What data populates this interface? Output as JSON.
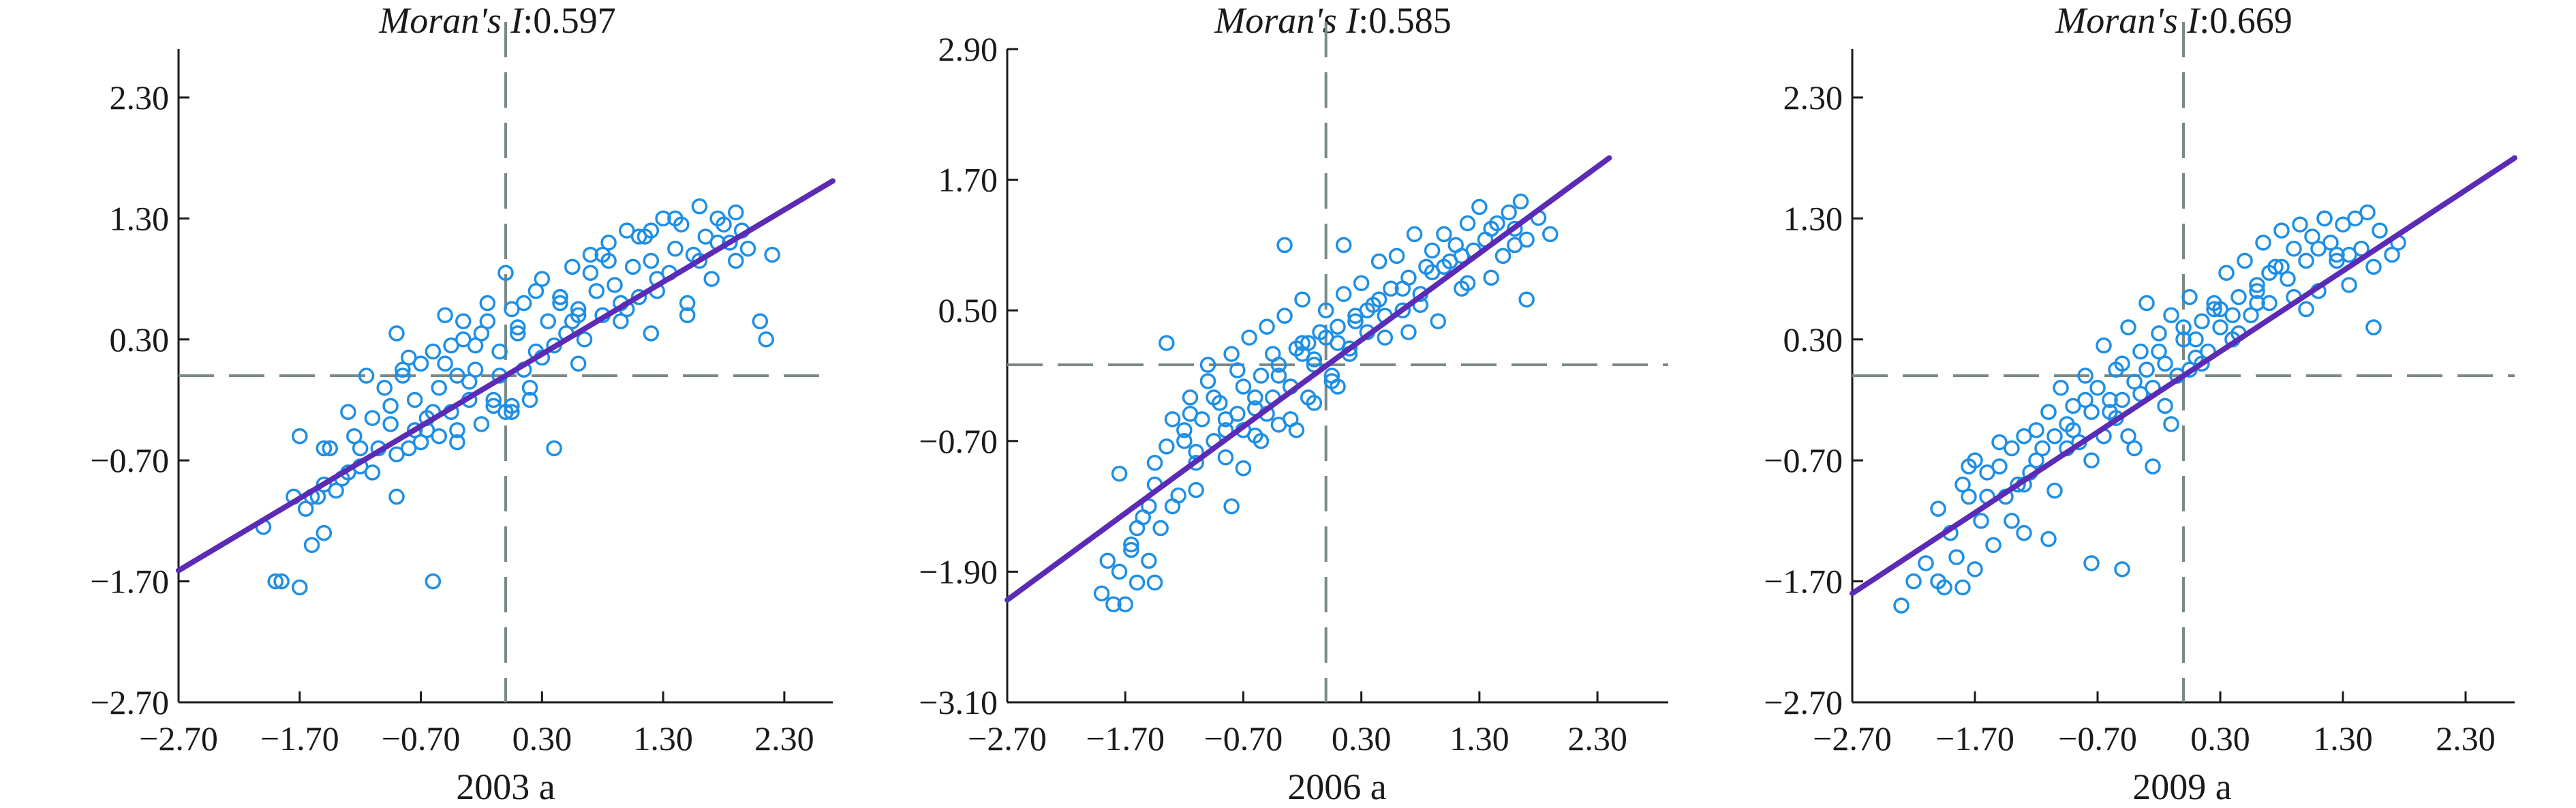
{
  "colors": {
    "point": "#1e8fe6",
    "fit_line": "#5b2bb5",
    "reference_line": "#7a8a86",
    "axis": "#1a1a1a"
  },
  "chart_data": [
    {
      "type": "scatter",
      "title_italic": "Moran's I",
      "title_value": ":0.597",
      "xlabel": "2003 a",
      "ylabel": "",
      "xlim": [
        -2.7,
        2.7
      ],
      "ylim": [
        -2.7,
        2.7
      ],
      "xticks": [
        "−2.70",
        "−1.70",
        "−0.70",
        "0.30",
        "1.30",
        "2.30"
      ],
      "yticks": [
        "−2.70",
        "−1.70",
        "−0.70",
        "0.30",
        "1.30",
        "2.30"
      ],
      "xtick_values": [
        -2.7,
        -1.7,
        -0.7,
        0.3,
        1.3,
        2.3
      ],
      "ytick_values": [
        -2.7,
        -1.7,
        -0.7,
        0.3,
        1.3,
        2.3
      ],
      "reference_x": 0.0,
      "reference_y": 0.0,
      "fit_line": {
        "x": [
          -2.7,
          2.7
        ],
        "y": [
          -1.61,
          1.61
        ]
      },
      "grid": false,
      "points_x": [
        -2.0,
        -1.9,
        -1.85,
        -1.75,
        -1.7,
        -1.65,
        -1.6,
        -1.55,
        -1.5,
        -1.45,
        -1.4,
        -1.3,
        -1.25,
        -1.2,
        -1.15,
        -1.1,
        -1.05,
        -1.0,
        -0.95,
        -0.9,
        -0.85,
        -0.8,
        -0.75,
        -0.7,
        -0.65,
        -0.6,
        -0.55,
        -0.5,
        -0.45,
        -0.4,
        -0.35,
        -0.3,
        -0.25,
        -0.2,
        -0.15,
        -0.1,
        -0.05,
        0.0,
        0.05,
        0.1,
        0.15,
        0.2,
        0.25,
        0.3,
        0.35,
        0.4,
        0.45,
        0.5,
        0.55,
        0.6,
        0.65,
        0.7,
        0.75,
        0.8,
        0.85,
        0.9,
        0.95,
        1.0,
        1.05,
        1.1,
        1.15,
        1.2,
        1.25,
        1.3,
        1.35,
        1.4,
        1.45,
        1.5,
        1.55,
        1.6,
        1.65,
        1.7,
        1.75,
        1.8,
        1.85,
        1.9,
        1.95,
        2.0,
        2.1,
        2.15,
        -1.7,
        -1.5,
        -1.3,
        -1.1,
        -0.9,
        -0.85,
        -0.75,
        -0.6,
        -0.5,
        -0.4,
        -0.35,
        -0.25,
        -0.15,
        -0.05,
        0.05,
        0.15,
        0.25,
        0.4,
        0.55,
        0.7,
        0.8,
        0.95,
        1.1,
        1.25,
        1.4,
        1.6,
        1.75,
        1.9,
        -1.6,
        -1.2,
        -0.95,
        -0.8,
        -0.65,
        -0.45,
        -0.3,
        -0.2,
        0.0,
        0.1,
        0.3,
        0.45,
        0.6,
        0.85,
        1.0,
        1.2,
        1.5,
        -0.9,
        -0.7,
        -0.55,
        -0.4,
        -0.1,
        0.05,
        0.2,
        -1.5,
        -1.35,
        -0.6,
        0.45,
        0.6,
        1.2,
        2.2
      ],
      "points_y": [
        -1.25,
        -1.7,
        -1.7,
        -1.0,
        -1.75,
        -1.1,
        -1.4,
        -1.0,
        -1.3,
        -0.6,
        -0.95,
        -0.8,
        -0.5,
        -0.75,
        0.0,
        -0.35,
        -0.6,
        -0.1,
        -0.4,
        0.35,
        0.0,
        -0.6,
        -0.2,
        0.1,
        -0.45,
        0.2,
        -0.1,
        0.5,
        -0.3,
        0.0,
        0.45,
        -0.2,
        0.25,
        -0.4,
        0.6,
        -0.2,
        0.2,
        0.85,
        -0.25,
        0.35,
        0.6,
        -0.1,
        0.2,
        0.8,
        0.45,
        -0.6,
        0.6,
        0.35,
        0.9,
        0.55,
        0.3,
        1.0,
        0.7,
        0.5,
        1.1,
        0.75,
        0.45,
        1.2,
        0.9,
        0.65,
        1.15,
        0.95,
        0.8,
        1.3,
        0.85,
        1.05,
        1.25,
        0.5,
        1.0,
        1.4,
        1.15,
        0.8,
        1.3,
        1.25,
        1.1,
        0.95,
        1.2,
        1.05,
        0.45,
        0.3,
        -0.5,
        -0.9,
        -0.3,
        -0.8,
        -1.0,
        0.05,
        -0.45,
        -0.3,
        0.1,
        -0.55,
        0.3,
        0.05,
        0.45,
        0.0,
        0.55,
        0.05,
        0.7,
        0.25,
        0.45,
        0.85,
        1.0,
        0.6,
        1.15,
        0.7,
        1.3,
        0.95,
        1.1,
        1.35,
        -1.0,
        -0.6,
        -0.25,
        0.15,
        -0.35,
        0.25,
        -0.05,
        0.35,
        -0.3,
        0.4,
        0.15,
        0.65,
        0.1,
        0.95,
        0.55,
        1.2,
        0.6,
        -0.65,
        -0.55,
        -0.5,
        -0.45,
        -0.25,
        -0.3,
        -0.2,
        -0.6,
        -0.85,
        -1.7,
        0.65,
        0.5,
        0.35,
        1.0
      ]
    },
    {
      "type": "scatter",
      "title_italic": "Moran's I",
      "title_value": ":0.585",
      "xlabel": "2006 a",
      "ylabel": "",
      "xlim": [
        -2.7,
        2.9
      ],
      "ylim": [
        -3.1,
        2.9
      ],
      "xticks": [
        "−2.70",
        "−1.70",
        "−0.70",
        "0.30",
        "1.30",
        "2.30"
      ],
      "yticks": [
        "−3.10",
        "−1.90",
        "−0.70",
        "0.50",
        "1.70",
        "2.90"
      ],
      "xtick_values": [
        -2.7,
        -1.7,
        -0.7,
        0.3,
        1.3,
        2.3
      ],
      "ytick_values": [
        -3.1,
        -1.9,
        -0.7,
        0.5,
        1.7,
        2.9
      ],
      "reference_x": 0.0,
      "reference_y": 0.0,
      "fit_line": {
        "x": [
          -2.7,
          2.4
        ],
        "y": [
          -2.16,
          1.9
        ]
      },
      "grid": false,
      "points_x": [
        -1.9,
        -1.85,
        -1.8,
        -1.75,
        -1.7,
        -1.65,
        -1.6,
        -1.55,
        -1.5,
        -1.45,
        -1.4,
        -1.35,
        -1.3,
        -1.25,
        -1.2,
        -1.15,
        -1.1,
        -1.05,
        -1.0,
        -0.95,
        -0.9,
        -0.85,
        -0.8,
        -0.75,
        -0.7,
        -0.65,
        -0.6,
        -0.55,
        -0.5,
        -0.45,
        -0.4,
        -0.35,
        -0.3,
        -0.25,
        -0.2,
        -0.15,
        -0.1,
        -0.05,
        0.0,
        0.05,
        0.1,
        0.15,
        0.2,
        0.25,
        0.3,
        0.35,
        0.4,
        0.45,
        0.5,
        0.55,
        0.6,
        0.65,
        0.7,
        0.75,
        0.8,
        0.85,
        0.9,
        0.95,
        1.0,
        1.05,
        1.1,
        1.15,
        1.2,
        1.25,
        1.3,
        1.35,
        1.4,
        1.45,
        1.5,
        1.55,
        1.6,
        1.65,
        1.7,
        1.8,
        1.9,
        -1.75,
        -1.6,
        -1.45,
        -1.3,
        -1.2,
        -1.1,
        -0.95,
        -0.85,
        -0.7,
        -0.6,
        -0.5,
        -0.4,
        -0.3,
        -0.2,
        -0.1,
        0.0,
        0.1,
        0.2,
        0.35,
        0.5,
        0.65,
        0.8,
        1.0,
        1.2,
        1.4,
        1.6,
        -1.65,
        -1.5,
        -1.35,
        -1.15,
        -1.0,
        -0.85,
        -0.75,
        -0.6,
        -0.45,
        -0.3,
        -0.15,
        0.05,
        0.25,
        0.45,
        0.7,
        0.9,
        1.15,
        -0.7,
        -0.55,
        -0.4,
        -0.25,
        -0.1,
        0.1,
        -1.1,
        -0.8,
        -1.45,
        -0.35,
        0.15,
        -0.2,
        1.7
      ],
      "points_y": [
        -2.1,
        -1.8,
        -2.2,
        -1.9,
        -2.2,
        -1.7,
        -2.0,
        -1.4,
        -1.8,
        -1.1,
        -1.5,
        0.2,
        -0.5,
        -1.2,
        -0.7,
        -0.3,
        -0.9,
        -0.5,
        0.0,
        -0.7,
        -0.35,
        -0.6,
        0.1,
        -0.45,
        -0.2,
        0.25,
        -0.4,
        -0.1,
        0.35,
        -0.3,
        0.0,
        0.45,
        -0.2,
        0.15,
        0.6,
        -0.3,
        0.05,
        0.3,
        0.5,
        -0.1,
        0.2,
        0.65,
        0.1,
        0.4,
        0.75,
        0.3,
        0.55,
        0.95,
        0.45,
        0.7,
        1.0,
        0.5,
        0.8,
        1.2,
        0.65,
        0.9,
        1.05,
        0.4,
        1.2,
        0.95,
        1.1,
        0.7,
        1.3,
        1.05,
        1.45,
        1.15,
        0.8,
        1.3,
        1.0,
        1.4,
        1.25,
        1.5,
        1.15,
        1.35,
        1.2,
        -1.0,
        -1.5,
        -0.9,
        -1.3,
        -0.6,
        -0.8,
        -0.3,
        -0.5,
        -0.6,
        -0.3,
        -0.45,
        -0.1,
        -0.2,
        0.2,
        0.0,
        0.25,
        0.35,
        0.15,
        0.5,
        0.25,
        0.7,
        0.55,
        0.9,
        0.75,
        1.25,
        1.1,
        -1.65,
        -1.3,
        -0.75,
        -0.45,
        -0.15,
        -0.85,
        -0.05,
        -0.65,
        0.1,
        -0.5,
        0.2,
        -0.15,
        0.45,
        0.6,
        0.3,
        0.85,
        1.0,
        -0.95,
        -0.7,
        -0.55,
        -0.6,
        -0.35,
        -0.2,
        -1.15,
        -1.3,
        -2.0,
        1.1,
        1.1,
        0.1,
        0.6
      ]
    },
    {
      "type": "scatter",
      "title_italic": "Moran's I",
      "title_value": ":0.669",
      "xlabel": "2009 a",
      "ylabel": "",
      "xlim": [
        -2.7,
        2.7
      ],
      "ylim": [
        -2.7,
        2.7
      ],
      "xticks": [
        "−2.70",
        "−1.70",
        "−0.70",
        "0.30",
        "1.30",
        "2.30"
      ],
      "yticks": [
        "−2.70",
        "−1.70",
        "−0.70",
        "0.30",
        "1.30",
        "2.30"
      ],
      "xtick_values": [
        -2.7,
        -1.7,
        -0.7,
        0.3,
        1.3,
        2.3
      ],
      "ytick_values": [
        -2.7,
        -1.7,
        -0.7,
        0.3,
        1.3,
        2.3
      ],
      "reference_x": 0.0,
      "reference_y": 0.0,
      "fit_line": {
        "x": [
          -2.7,
          2.7
        ],
        "y": [
          -1.8,
          1.8
        ]
      },
      "grid": false,
      "points_x": [
        -2.3,
        -2.2,
        -2.1,
        -2.0,
        -1.95,
        -1.9,
        -1.85,
        -1.8,
        -1.75,
        -1.7,
        -1.65,
        -1.6,
        -1.55,
        -1.5,
        -1.45,
        -1.4,
        -1.35,
        -1.3,
        -1.25,
        -1.2,
        -1.15,
        -1.1,
        -1.05,
        -1.0,
        -0.95,
        -0.9,
        -0.85,
        -0.8,
        -0.75,
        -0.7,
        -0.65,
        -0.6,
        -0.55,
        -0.5,
        -0.45,
        -0.4,
        -0.35,
        -0.3,
        -0.25,
        -0.2,
        -0.15,
        -0.1,
        -0.05,
        0.0,
        0.05,
        0.1,
        0.15,
        0.2,
        0.25,
        0.3,
        0.35,
        0.4,
        0.45,
        0.5,
        0.55,
        0.6,
        0.65,
        0.7,
        0.75,
        0.8,
        0.85,
        0.9,
        0.95,
        1.0,
        1.05,
        1.1,
        1.15,
        1.2,
        1.25,
        1.3,
        1.35,
        1.4,
        1.45,
        1.5,
        1.55,
        1.6,
        1.7,
        1.75,
        -2.0,
        -1.8,
        -1.6,
        -1.4,
        -1.2,
        -1.05,
        -0.9,
        -0.75,
        -0.6,
        -0.45,
        -0.3,
        -0.15,
        0.0,
        0.15,
        0.3,
        0.45,
        0.6,
        0.8,
        1.0,
        1.15,
        1.35,
        1.55,
        -1.7,
        -1.5,
        -1.3,
        -1.1,
        -0.95,
        -0.8,
        -0.65,
        -0.5,
        -0.35,
        -0.2,
        -0.05,
        0.1,
        0.25,
        0.4,
        0.7,
        0.9,
        1.1,
        1.25,
        -0.55,
        -0.4,
        -0.25,
        -0.1,
        0.05,
        -1.3,
        -1.1,
        -0.75,
        -0.5,
        -1.75,
        0.4,
        0.6
      ],
      "points_y": [
        -1.9,
        -1.7,
        -1.55,
        -1.7,
        -1.75,
        -1.3,
        -1.5,
        -1.75,
        -1.0,
        -1.6,
        -1.2,
        -0.8,
        -1.4,
        -0.75,
        -1.0,
        -0.6,
        -0.9,
        -0.5,
        -0.8,
        -0.45,
        -0.6,
        -0.3,
        -0.5,
        -0.1,
        -0.4,
        -0.25,
        -0.55,
        0.0,
        -0.3,
        -0.1,
        0.25,
        -0.3,
        0.05,
        -0.2,
        0.4,
        -0.05,
        0.2,
        0.6,
        -0.1,
        0.35,
        0.1,
        0.5,
        0.0,
        0.3,
        0.65,
        0.15,
        0.45,
        0.2,
        0.55,
        0.4,
        0.85,
        0.3,
        0.65,
        0.95,
        0.5,
        0.75,
        1.1,
        0.6,
        0.9,
        1.2,
        0.8,
        1.05,
        1.25,
        0.95,
        1.15,
        0.7,
        1.3,
        1.1,
        1.0,
        1.25,
        0.75,
        1.3,
        1.05,
        1.35,
        0.9,
        1.2,
        1.0,
        1.1,
        -1.1,
        -0.9,
        -1.0,
        -1.2,
        -0.7,
        -0.95,
        -0.45,
        -0.7,
        -0.2,
        -0.5,
        0.05,
        -0.25,
        0.4,
        0.1,
        0.55,
        0.35,
        0.7,
        0.9,
        0.55,
        1.3,
        1.0,
        0.4,
        -0.7,
        -0.55,
        -0.9,
        -0.3,
        -0.6,
        -0.2,
        -0.5,
        0.1,
        -0.15,
        0.2,
        0.0,
        0.3,
        0.6,
        0.5,
        0.85,
        0.65,
        1.05,
        0.95,
        -0.35,
        -0.6,
        -0.75,
        -0.4,
        0.05,
        -1.3,
        -1.35,
        -1.55,
        -1.6,
        -0.75,
        0.3,
        0.6
      ]
    }
  ]
}
